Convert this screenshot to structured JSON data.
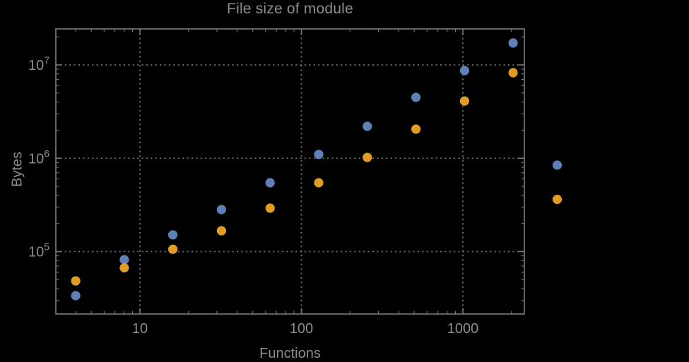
{
  "window": {
    "background": "#000000"
  },
  "colors": {
    "text": "#8d8d8d",
    "frame": "#7c7c7c",
    "grid": "#757575",
    "series_blue": "#5e81b5",
    "series_orange": "#e19c24"
  },
  "chart_data": {
    "type": "scatter",
    "title": "File size of module",
    "xlabel": "Functions",
    "ylabel": "Bytes",
    "x_scale": "log",
    "y_scale": "log",
    "xlim": [
      3,
      2400
    ],
    "ylim": [
      21500,
      24000000
    ],
    "x_ticks": [
      10,
      100,
      1000
    ],
    "x_tick_labels": [
      "10",
      "100",
      "1000"
    ],
    "y_ticks": [
      100000,
      1000000,
      10000000
    ],
    "y_tick_labels": [
      "10^5",
      "10^6",
      "10^7"
    ],
    "grid": true,
    "grid_style": "dotted",
    "frame": true,
    "series": [
      {
        "name": "series-1-blue",
        "color": "#5e81b5",
        "x": [
          4,
          8,
          16,
          32,
          64,
          128,
          256,
          512,
          1024,
          2048
        ],
        "y": [
          33700,
          81800,
          151000,
          282000,
          546000,
          1100000,
          2200000,
          4490000,
          8700000,
          17200000
        ]
      },
      {
        "name": "series-2-orange",
        "color": "#e19c24",
        "x": [
          4,
          8,
          16,
          32,
          64,
          128,
          256,
          512,
          1024,
          2048
        ],
        "y": [
          48500,
          67000,
          106000,
          167000,
          292000,
          546000,
          1020000,
          2050000,
          4110000,
          8260000
        ]
      }
    ],
    "legend": {
      "position": "right-of-frame",
      "labels_visible": false,
      "markers": [
        {
          "series": "series-1-blue",
          "color": "#5e81b5"
        },
        {
          "series": "series-2-orange",
          "color": "#e19c24"
        }
      ]
    }
  }
}
